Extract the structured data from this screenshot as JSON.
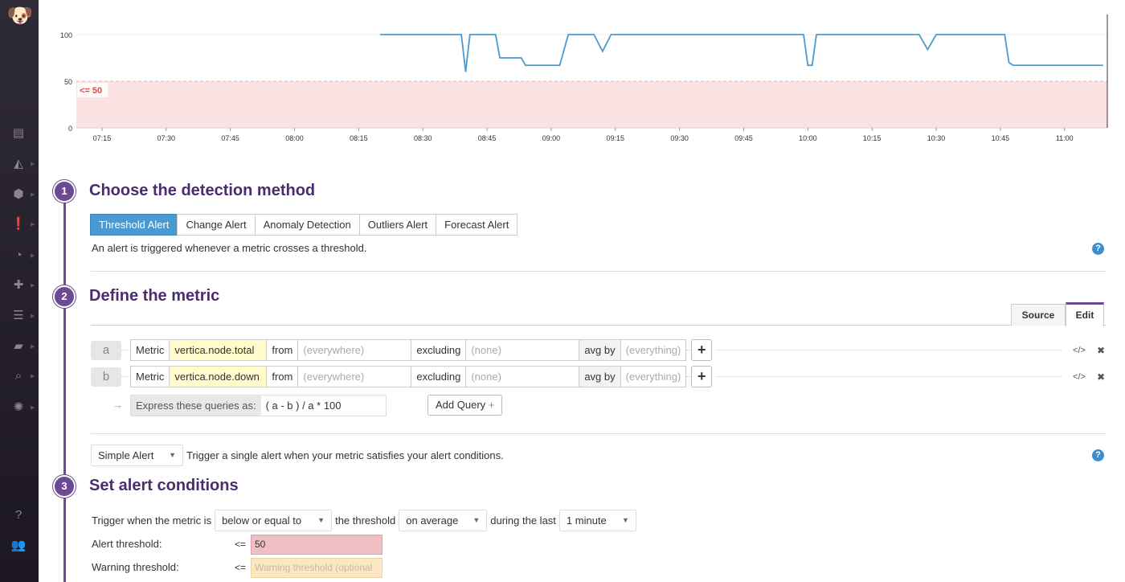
{
  "sidebar": {
    "items": [
      {
        "icon": "logo-dog-icon"
      },
      {
        "icon": "dashboard-list-icon"
      },
      {
        "icon": "metrics-graph-icon"
      },
      {
        "icon": "integrations-hex-icon"
      },
      {
        "icon": "monitors-alert-icon",
        "active": true
      },
      {
        "icon": "apm-gauge-icon"
      },
      {
        "icon": "plugins-puzzle-icon"
      },
      {
        "icon": "logs-filter-icon"
      },
      {
        "icon": "notebook-icon"
      },
      {
        "icon": "search-list-icon"
      },
      {
        "icon": "security-gear-icon"
      },
      {
        "icon": "help-icon"
      },
      {
        "icon": "team-users-icon"
      }
    ]
  },
  "chart_data": {
    "type": "line",
    "xlim": [
      "07:09",
      "11:10"
    ],
    "ylim": [
      0,
      100
    ],
    "yticks": [
      "0",
      "50",
      "100"
    ],
    "xticks": [
      "07:15",
      "07:30",
      "07:45",
      "08:00",
      "08:15",
      "08:30",
      "08:45",
      "09:00",
      "09:15",
      "09:30",
      "09:45",
      "10:00",
      "10:15",
      "10:30",
      "10:45",
      "11:00"
    ],
    "threshold": {
      "label": "<= 50",
      "value": 50,
      "color": "#fbe3e3",
      "label_color": "#e0484e"
    },
    "line_color": "#4a9ad0",
    "x": [
      "08:20",
      "08:39",
      "08:40",
      "08:41",
      "08:47",
      "08:48",
      "08:53",
      "08:54",
      "09:02",
      "09:04",
      "09:10",
      "09:12",
      "09:14",
      "09:59",
      "10:00",
      "10:01",
      "10:02",
      "10:26",
      "10:28",
      "10:30",
      "10:46",
      "10:47",
      "10:48",
      "11:09"
    ],
    "values": [
      100,
      100,
      60,
      100,
      100,
      75,
      75,
      67,
      67,
      100,
      100,
      82,
      100,
      100,
      67,
      67,
      100,
      100,
      84,
      100,
      100,
      70,
      67,
      67
    ]
  },
  "step1": {
    "num": "1",
    "title": "Choose the detection method",
    "tabs": [
      "Threshold Alert",
      "Change Alert",
      "Anomaly Detection",
      "Outliers Alert",
      "Forecast Alert"
    ],
    "selected": "Threshold Alert",
    "desc": "An alert is triggered whenever a metric crosses a threshold.",
    "help": "?"
  },
  "step2": {
    "num": "2",
    "title": "Define the metric",
    "tabs": {
      "source": "Source",
      "edit": "Edit"
    },
    "queries": [
      {
        "label": "a",
        "metric_label": "Metric",
        "metric": "vertica.node.total",
        "from_label": "from",
        "from": "(everywhere)",
        "excluding_label": "excluding",
        "excluding": "(none)",
        "avg_label": "avg by",
        "avg": "(everything)"
      },
      {
        "label": "b",
        "metric_label": "Metric",
        "metric": "vertica.node.down",
        "from_label": "from",
        "from": "(everywhere)",
        "excluding_label": "excluding",
        "excluding": "(none)",
        "avg_label": "avg by",
        "avg": "(everything)"
      }
    ],
    "plus": "+",
    "code": "</>",
    "remove": "✖",
    "arrow": "→",
    "express_label": "Express these queries as:",
    "express_value": "( a - b ) / a * 100",
    "add_query": "Add Query",
    "add_plus": "+"
  },
  "alert_type": {
    "value": "Simple Alert",
    "desc": "Trigger a single alert when your metric satisfies your alert conditions.",
    "help": "?"
  },
  "step3": {
    "num": "3",
    "title": "Set alert conditions",
    "trigger_label": "Trigger when the metric is",
    "comparison": "below or equal to",
    "threshold_label": "the threshold",
    "aggregation": "on average",
    "during_label": "during the last",
    "window": "1 minute",
    "alert_label": "Alert threshold:",
    "alert_op": "<=",
    "alert_value": "50",
    "warning_label": "Warning threshold:",
    "warning_op": "<=",
    "warning_placeholder": "Warning threshold (optional"
  }
}
